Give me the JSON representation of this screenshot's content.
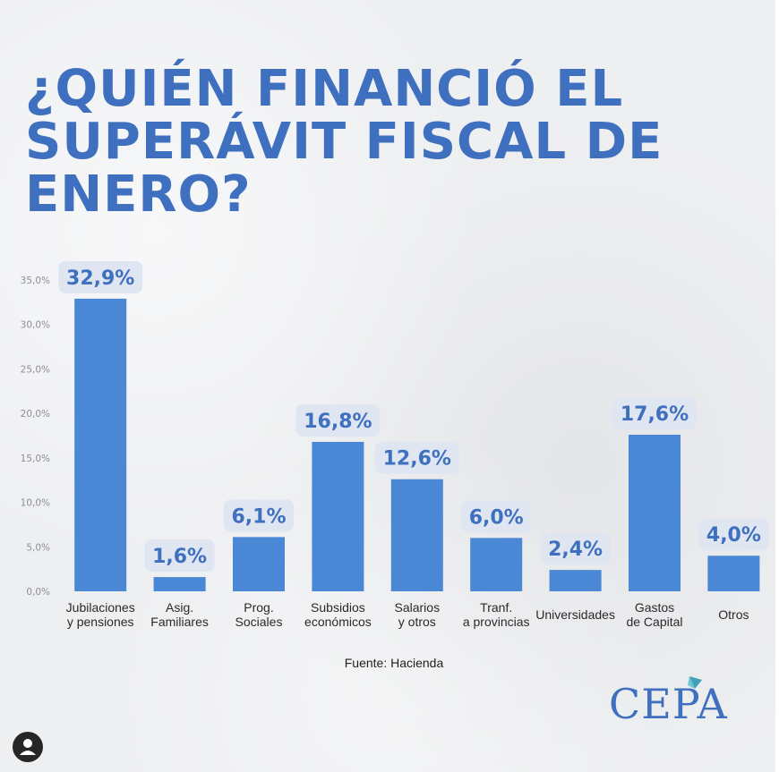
{
  "title": "¿QUIÉN FINANCIÓ EL SUPERÁVIT FISCAL DE ENERO?",
  "source": "Fuente: Hacienda",
  "logo": "CEPA",
  "colors": {
    "title": "#3f70bf",
    "bar": "#4a87d4",
    "label_bg": "#dfe6f1"
  },
  "chart_data": {
    "type": "bar",
    "categories": [
      [
        "Jubilaciones",
        "y pensiones"
      ],
      [
        "Asig.",
        "Familiares"
      ],
      [
        "Prog.",
        "Sociales"
      ],
      [
        "Subsidios",
        "económicos"
      ],
      [
        "Salarios",
        "y otros"
      ],
      [
        "Tranf.",
        "a provincias"
      ],
      [
        "Universidades"
      ],
      [
        "Gastos",
        "de Capital"
      ],
      [
        "Otros"
      ]
    ],
    "values": [
      32.9,
      1.6,
      6.1,
      16.8,
      12.6,
      6.0,
      2.4,
      17.6,
      4.0
    ],
    "data_labels": [
      "32,9%",
      "1,6%",
      "6,1%",
      "16,8%",
      "12,6%",
      "6,0%",
      "2,4%",
      "17,6%",
      "4,0%"
    ],
    "yticks": [
      0,
      5,
      10,
      15,
      20,
      25,
      30,
      35
    ],
    "ytick_labels": [
      "0,0%",
      "5,0%",
      "10,0%",
      "15,0%",
      "20,0%",
      "25,0%",
      "30,0%",
      "35,0%"
    ],
    "ylim": [
      0,
      35
    ],
    "grid": false,
    "legend": "none"
  }
}
